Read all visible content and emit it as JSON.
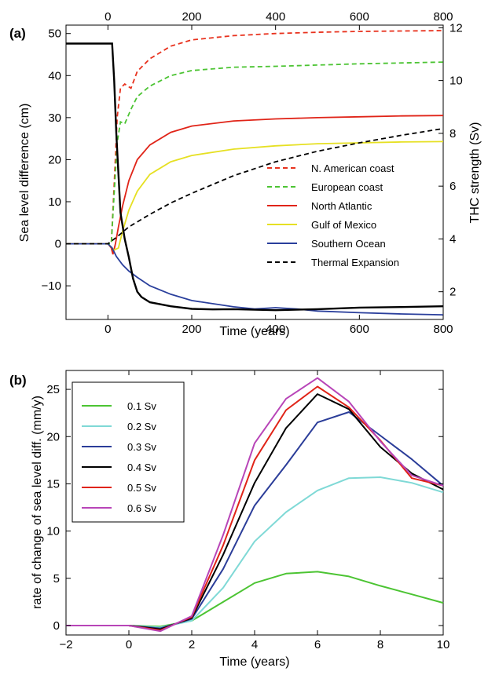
{
  "chart_data": [
    {
      "type": "line",
      "panel_label": "(a)",
      "xlabel": "Time (years)",
      "ylabel": "Sea level difference (cm)",
      "y2label": "THC strength (Sv)",
      "xlim": [
        -100,
        800
      ],
      "ylim": [
        -18,
        52
      ],
      "y2lim": [
        0.95,
        12.1
      ],
      "x_ticks": [
        0,
        200,
        400,
        600,
        800
      ],
      "x_top_ticks": [
        0,
        200,
        400,
        600,
        800
      ],
      "y_ticks": [
        -10,
        0,
        10,
        20,
        30,
        40,
        50
      ],
      "y_tick_labels": [
        "−10",
        "0",
        "10",
        "20",
        "30",
        "40",
        "50"
      ],
      "y2_ticks": [
        2,
        4,
        6,
        8,
        10,
        12
      ],
      "grid": false,
      "legend_position": "lower-right",
      "series": [
        {
          "name": "N. American coast",
          "axis": "left",
          "color": "#e8321e",
          "style": "dashed",
          "x": [
            -100,
            0,
            8,
            15,
            22,
            30,
            40,
            55,
            70,
            100,
            150,
            200,
            300,
            400,
            500,
            600,
            700,
            800
          ],
          "y": [
            0,
            0,
            0,
            14,
            30,
            37,
            38,
            37,
            41,
            44,
            47,
            48.5,
            49.5,
            50,
            50.3,
            50.5,
            50.6,
            50.7
          ]
        },
        {
          "name": "European coast",
          "axis": "left",
          "color": "#4cc433",
          "style": "dashed",
          "x": [
            -100,
            0,
            8,
            15,
            22,
            30,
            40,
            55,
            70,
            100,
            150,
            200,
            300,
            400,
            500,
            600,
            700,
            800
          ],
          "y": [
            0,
            0,
            0,
            12,
            24,
            29,
            28.5,
            32,
            35,
            37.5,
            40,
            41.2,
            42,
            42.2,
            42.5,
            42.8,
            43,
            43.2
          ]
        },
        {
          "name": "North Atlantic",
          "axis": "left",
          "color": "#e02418",
          "style": "solid",
          "x": [
            -100,
            0,
            8,
            12,
            18,
            25,
            35,
            50,
            70,
            100,
            150,
            200,
            300,
            400,
            500,
            600,
            700,
            800
          ],
          "y": [
            0,
            0,
            -1,
            -2.5,
            0,
            4,
            9,
            15,
            20,
            23.5,
            26.5,
            28,
            29.2,
            29.7,
            30,
            30.2,
            30.4,
            30.5
          ]
        },
        {
          "name": "Gulf of Mexico",
          "axis": "left",
          "color": "#e6e023",
          "style": "solid",
          "x": [
            -100,
            0,
            15,
            25,
            35,
            50,
            70,
            100,
            150,
            200,
            300,
            400,
            500,
            600,
            700,
            800
          ],
          "y": [
            0,
            0,
            -1.5,
            -1,
            3,
            8,
            12.5,
            16.5,
            19.5,
            21,
            22.5,
            23.3,
            23.8,
            24,
            24.2,
            24.3
          ]
        },
        {
          "name": "Southern Ocean",
          "axis": "left",
          "color": "#2a3f9c",
          "style": "solid",
          "x": [
            -100,
            0,
            10,
            20,
            35,
            50,
            70,
            100,
            150,
            200,
            300,
            350,
            400,
            450,
            500,
            600,
            700,
            800
          ],
          "y": [
            0,
            0,
            -1,
            -3,
            -5,
            -6.5,
            -8,
            -10,
            -12,
            -13.5,
            -15,
            -15.5,
            -15.2,
            -15.5,
            -16,
            -16.4,
            -16.7,
            -16.9
          ]
        },
        {
          "name": "Thermal Expansion",
          "axis": "left",
          "color": "#000000",
          "style": "dashed",
          "x": [
            -100,
            0,
            20,
            50,
            100,
            150,
            200,
            300,
            400,
            500,
            600,
            700,
            800
          ],
          "y": [
            0,
            0,
            1.5,
            4,
            7,
            9.7,
            12,
            16.2,
            19.5,
            22,
            24,
            25.8,
            27.4
          ]
        },
        {
          "name": "THC strength",
          "axis": "right",
          "color": "#000000",
          "style": "solid",
          "x": [
            -100,
            0,
            10,
            15,
            20,
            30,
            40,
            50,
            60,
            70,
            80,
            100,
            150,
            200,
            250,
            300,
            400,
            500,
            600,
            700,
            800
          ],
          "y": [
            11.4,
            11.4,
            11.4,
            10,
            8,
            5,
            4,
            3.3,
            2.5,
            2,
            1.8,
            1.6,
            1.45,
            1.35,
            1.33,
            1.34,
            1.3,
            1.34,
            1.4,
            1.42,
            1.45
          ]
        }
      ]
    },
    {
      "type": "line",
      "panel_label": "(b)",
      "xlabel": "Time (years)",
      "ylabel": "rate of change of sea level diff. (mm/y)",
      "xlim": [
        -2,
        10
      ],
      "ylim": [
        -1,
        27
      ],
      "x_ticks": [
        -2,
        0,
        2,
        4,
        6,
        8,
        10
      ],
      "x_tick_labels": [
        "−2",
        "0",
        "2",
        "4",
        "6",
        "8",
        "10"
      ],
      "y_ticks": [
        0,
        5,
        10,
        15,
        20,
        25
      ],
      "grid": false,
      "legend_position": "top-left",
      "x": [
        -2,
        -1,
        0,
        1,
        2,
        3,
        4,
        5,
        6,
        7,
        8,
        9,
        10
      ],
      "series": [
        {
          "name": "0.1 Sv",
          "color": "#4cc433",
          "values": [
            0,
            0,
            0,
            -0.1,
            0.5,
            2.5,
            4.5,
            5.5,
            5.7,
            5.2,
            4.2,
            3.3,
            2.4
          ]
        },
        {
          "name": "0.2 Sv",
          "color": "#7fd9d6",
          "values": [
            0,
            0,
            0,
            -0.2,
            0.5,
            4,
            8.9,
            12,
            14.3,
            15.6,
            15.7,
            15.1,
            14.1
          ]
        },
        {
          "name": "0.3 Sv",
          "color": "#2b3d99",
          "values": [
            0,
            0,
            0,
            -0.3,
            0.7,
            6,
            12.7,
            17,
            21.5,
            22.6,
            20.1,
            17.6,
            14.8
          ]
        },
        {
          "name": "0.4 Sv",
          "color": "#000000",
          "values": [
            0,
            0,
            0,
            -0.4,
            0.8,
            7.5,
            15.1,
            20.9,
            24.5,
            22.9,
            18.9,
            16.1,
            14.4
          ]
        },
        {
          "name": "0.5 Sv",
          "color": "#e02418",
          "values": [
            0,
            0,
            0,
            -0.5,
            0.9,
            8.5,
            17.5,
            22.8,
            25.3,
            23.1,
            19.6,
            15.6,
            14.8
          ]
        },
        {
          "name": "0.6 Sv",
          "color": "#b845b8",
          "values": [
            0,
            0,
            0,
            -0.6,
            1.0,
            9.6,
            19.3,
            24,
            26.2,
            23.7,
            19.5,
            15.9,
            14.8
          ]
        }
      ]
    }
  ]
}
